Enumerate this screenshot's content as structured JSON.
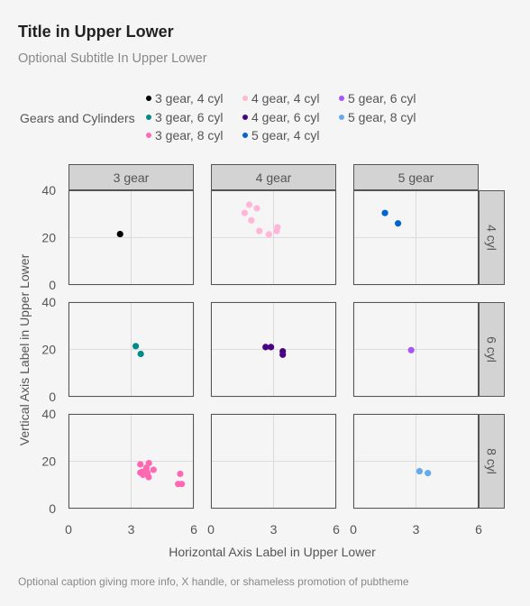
{
  "title": "Title in Upper Lower",
  "subtitle": "Optional Subtitle In Upper Lower",
  "caption": "Optional caption giving more info, X handle, or shameless promotion of pubtheme",
  "legend": {
    "title": "Gears and Cylinders",
    "items": [
      {
        "label": "3 gear, 4 cyl",
        "color": "#000000"
      },
      {
        "label": "3 gear, 6 cyl",
        "color": "#008B8B"
      },
      {
        "label": "3 gear, 8 cyl",
        "color": "#FF69B4"
      },
      {
        "label": "4 gear, 4 cyl",
        "color": "#FFB6D9"
      },
      {
        "label": "4 gear, 6 cyl",
        "color": "#4B0082"
      },
      {
        "label": "5 gear, 4 cyl",
        "color": "#0066CC"
      },
      {
        "label": "5 gear, 6 cyl",
        "color": "#A855F7"
      },
      {
        "label": "5 gear, 8 cyl",
        "color": "#66AAEE"
      }
    ]
  },
  "chart_data": {
    "type": "scatter",
    "xlabel": "Horizontal Axis Label in Upper Lower",
    "ylabel": "Vertical Axis Label in Upper Lower",
    "xlim": [
      0,
      6
    ],
    "ylim": [
      0,
      40
    ],
    "xticks": [
      0,
      3,
      6
    ],
    "yticks": [
      0,
      20,
      40
    ],
    "grid": true,
    "legend_position": "top",
    "facet_cols": [
      "3 gear",
      "4 gear",
      "5 gear"
    ],
    "facet_rows": [
      "4 cyl",
      "6 cyl",
      "8 cyl"
    ],
    "series": [
      {
        "name": "3 gear, 4 cyl",
        "col": 0,
        "row": 0,
        "color": "#000000",
        "points": [
          [
            2.47,
            21.5
          ]
        ]
      },
      {
        "name": "3 gear, 6 cyl",
        "col": 0,
        "row": 1,
        "color": "#008B8B",
        "points": [
          [
            3.22,
            21.4
          ],
          [
            3.46,
            18.1
          ]
        ]
      },
      {
        "name": "3 gear, 8 cyl",
        "col": 0,
        "row": 2,
        "color": "#FF69B4",
        "points": [
          [
            3.44,
            18.7
          ],
          [
            3.57,
            14.3
          ],
          [
            4.07,
            16.4
          ],
          [
            3.73,
            17.3
          ],
          [
            3.78,
            15.2
          ],
          [
            5.25,
            10.4
          ],
          [
            5.42,
            10.4
          ],
          [
            5.35,
            14.7
          ],
          [
            3.52,
            15.5
          ],
          [
            3.44,
            15.2
          ],
          [
            3.84,
            13.3
          ],
          [
            3.85,
            19.2
          ],
          [
            3.57,
            15.0
          ]
        ]
      },
      {
        "name": "4 gear, 4 cyl",
        "col": 1,
        "row": 0,
        "color": "#FFB6D9",
        "points": [
          [
            2.32,
            22.8
          ],
          [
            3.19,
            24.4
          ],
          [
            3.15,
            22.8
          ],
          [
            2.2,
            32.4
          ],
          [
            1.615,
            30.4
          ],
          [
            1.835,
            33.9
          ],
          [
            1.935,
            27.3
          ],
          [
            2.78,
            21.4
          ]
        ]
      },
      {
        "name": "4 gear, 6 cyl",
        "col": 1,
        "row": 1,
        "color": "#4B0082",
        "points": [
          [
            2.62,
            21.0
          ],
          [
            2.875,
            21.0
          ],
          [
            3.44,
            19.2
          ],
          [
            3.44,
            17.8
          ]
        ]
      },
      {
        "name": "5 gear, 4 cyl",
        "col": 2,
        "row": 0,
        "color": "#0066CC",
        "points": [
          [
            2.14,
            26.0
          ],
          [
            1.513,
            30.4
          ]
        ]
      },
      {
        "name": "5 gear, 6 cyl",
        "col": 2,
        "row": 1,
        "color": "#A855F7",
        "points": [
          [
            2.77,
            19.7
          ]
        ]
      },
      {
        "name": "5 gear, 8 cyl",
        "col": 2,
        "row": 2,
        "color": "#66AAEE",
        "points": [
          [
            3.17,
            15.8
          ],
          [
            3.57,
            15.0
          ]
        ]
      }
    ]
  }
}
